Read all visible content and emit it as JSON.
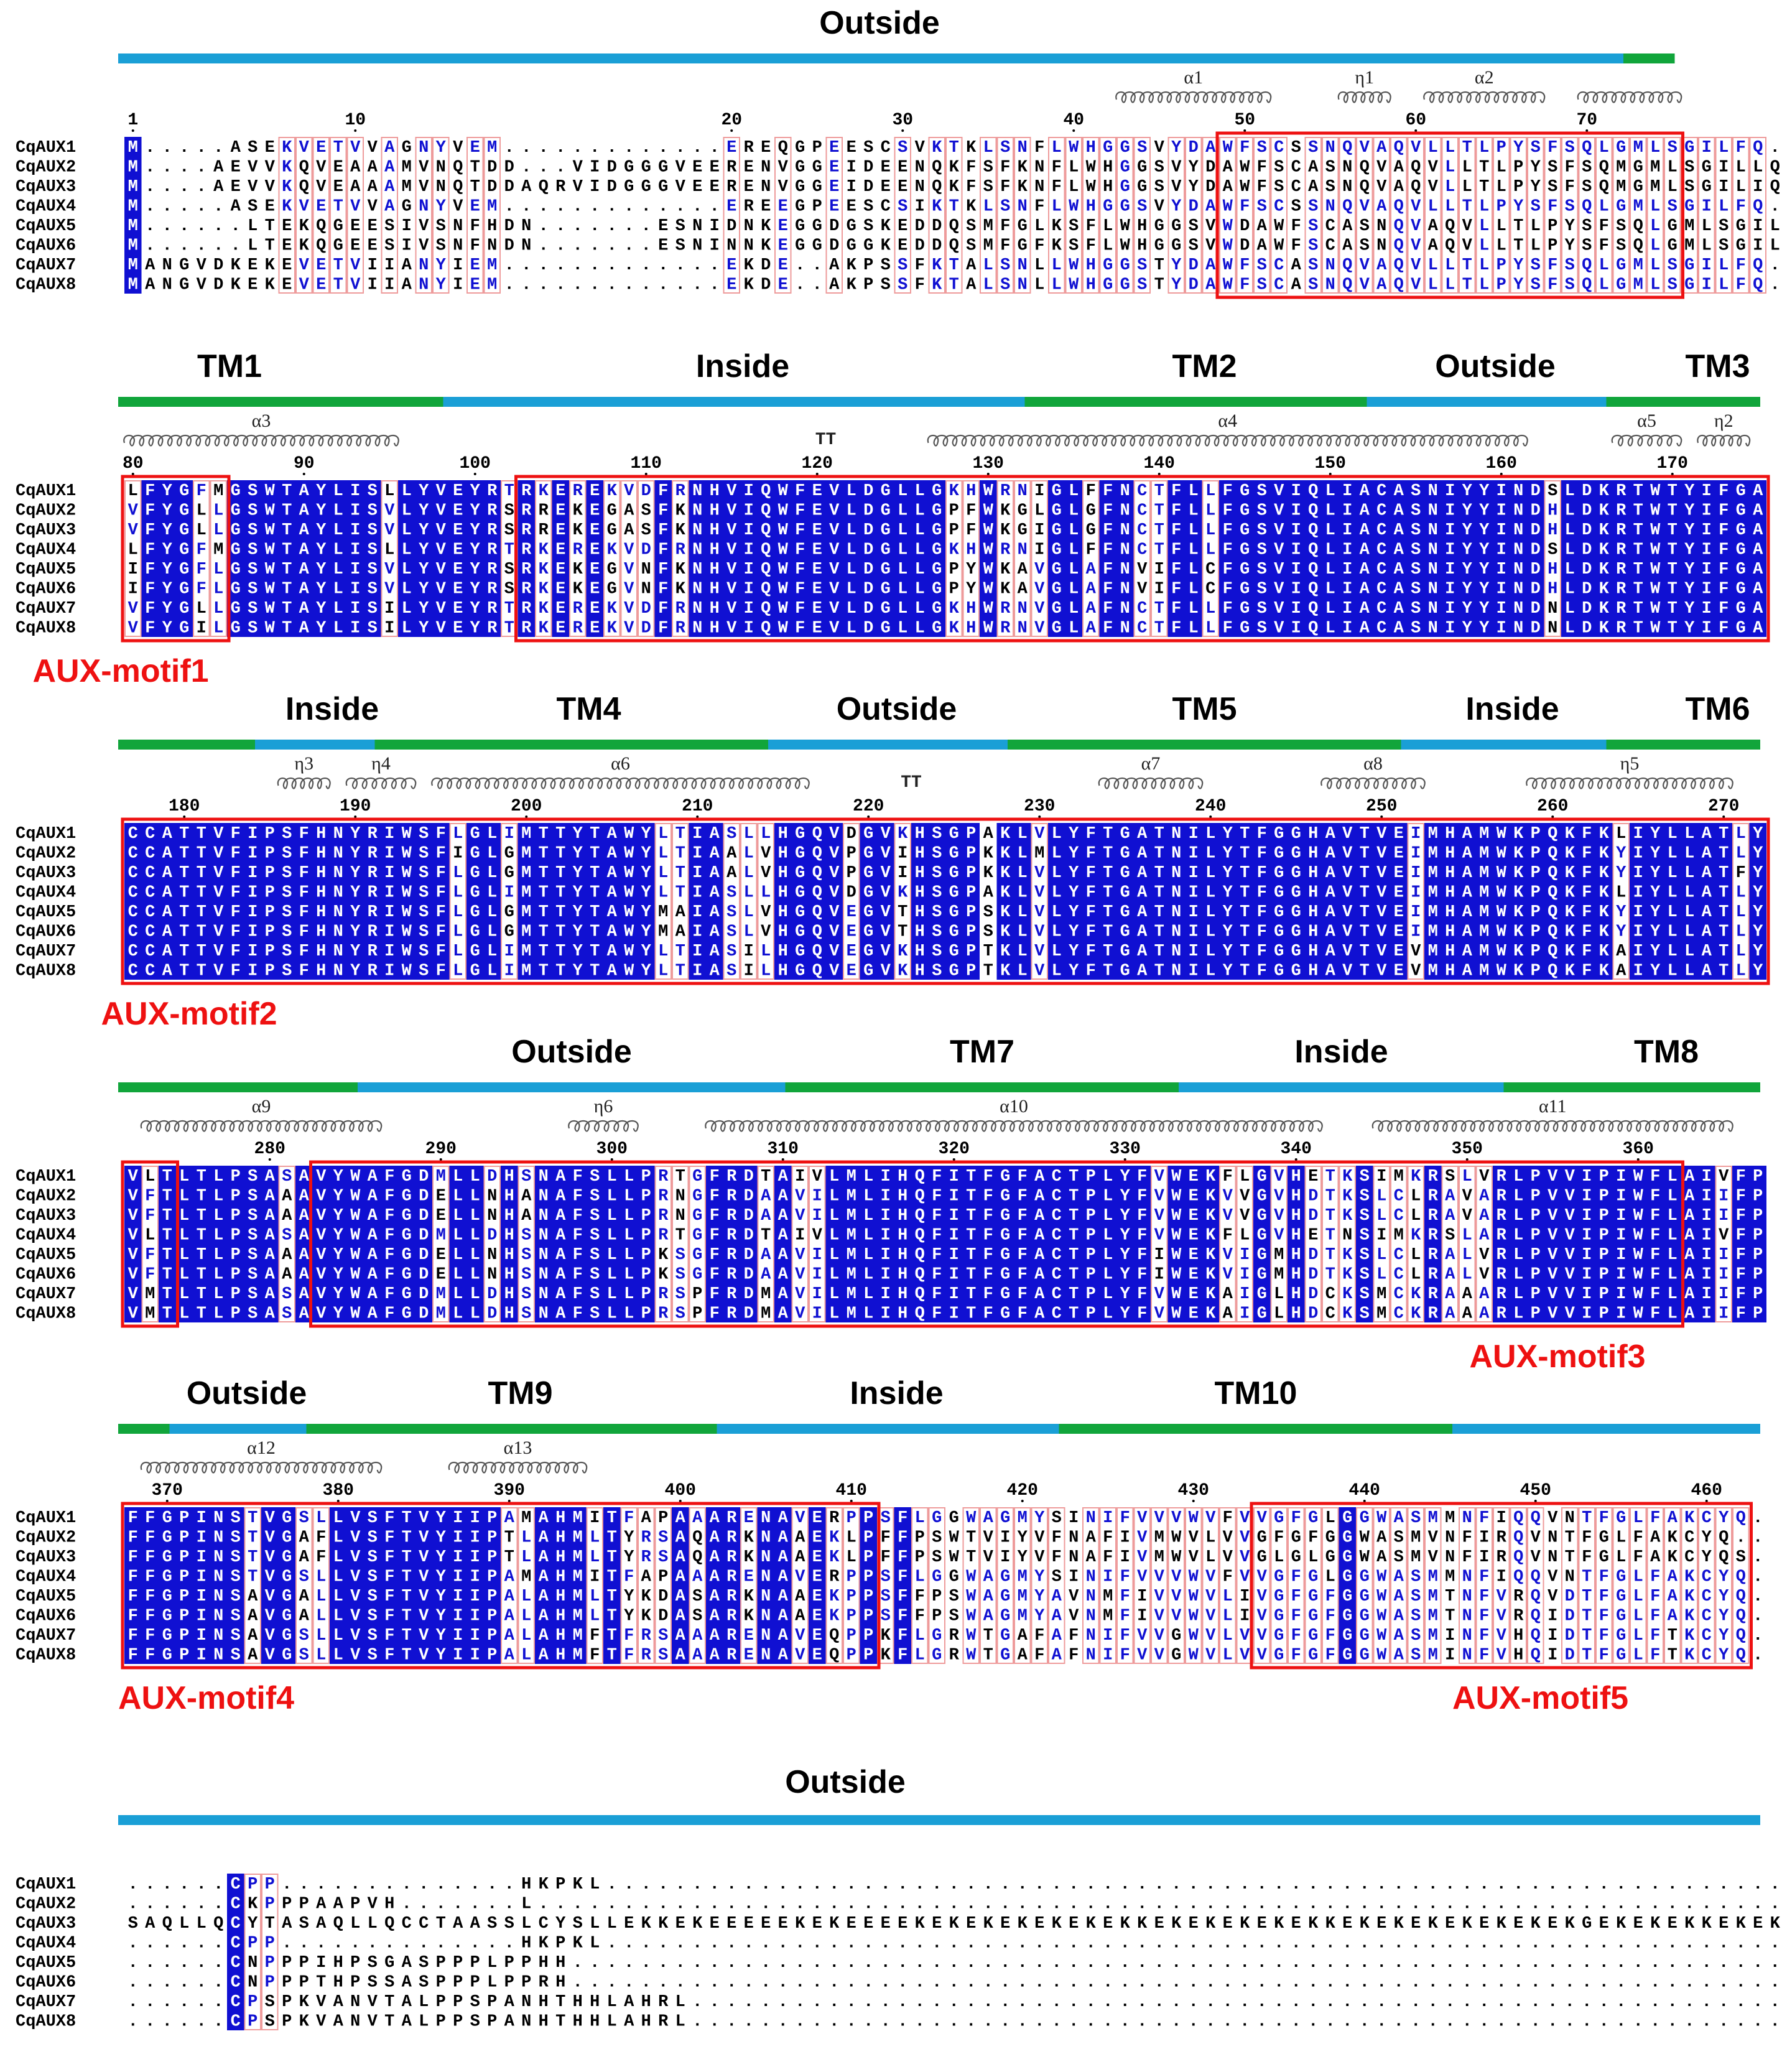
{
  "colors": {
    "conserved_bg": "#1010d2",
    "conserved_fg": "#ffffff",
    "similar_fg": "#1010d2",
    "default_fg": "#000000",
    "box_red": "#ee1111",
    "thin_red": "#ee9b9b",
    "outside_bar": "#1a9fd6",
    "tm_bar": "#11a53b",
    "motif_label": "#ee1111",
    "coil": "#777777"
  },
  "seq_names": [
    "CqAUX1",
    "CqAUX2",
    "CqAUX3",
    "CqAUX4",
    "CqAUX5",
    "CqAUX6",
    "CqAUX7",
    "CqAUX8"
  ],
  "blocks": [
    {
      "start_col": 0,
      "rows": [
        "M.....ASEKVETVVAGNYVEM.............EREQGPEESCSVKTKLSNFLWHGGSVYDAWFSCSSNQVAQVLLTLPYSFSQLGMLSGILFQ",
        "M....AEVVKQVEAAAMVNQTDD...VIDGGGVEERENVGGEIDEENQKFSFKNFLWHGGSVYDAWFSCASNQVAQVLLTLPYSFSQMGMLSGILLQ",
        "M....AEVVKQVEAAAMVNQTDDAQRVIDGGGVEERENVGGEIDEENQKFSFKNFLWHGGSVYDAWFSCASNQVAQVLLTLPYSFSQMGMLSGILIQ",
        "M.....ASEKVETVVAGNYVEM.............EREEGPEESCSIKTKLSNFLWHGGSVYDAWFSCSSNQVAQVLLTLPYSFSQLGMLSGILFQ",
        "M......LTEKQGEESIVSNFHDN.......ESNIDNKEGGDGSKEDDQSMFGLKSFLWHGGSVWDAWFSCASNQVAQVLLTLPYSFSQLGMLSGILLQ",
        "M......LTEKQGEESIVSNFNDN.......ESNINNKEGGDGGKEDDQSMFGFKSFLWHGGSVWDAWFSCASNQVAQVLLTLPYSFSQLGMLSGILLQ",
        "MANGVDKEKEVETVIIANYIEM.............EKDE..AKPSSFKTALSNLLWHGGSTYDAWFSCASNQVAQVLLTLPYSFSQLGMLSGILFQ",
        "MANGVDKEKEVETVIIANYIEM.............EKDE..AKPSSFKTALSNLLWHGGSTYDAWFSCASNQVAQVLLTLPYSFSQLGMLSGILFQ"
      ],
      "numbers": [
        {
          "col": 0,
          "label": "1"
        },
        {
          "col": 13,
          "label": "10"
        },
        {
          "col": 35,
          "label": "20"
        },
        {
          "col": 45,
          "label": "30"
        },
        {
          "col": 55,
          "label": "40"
        },
        {
          "col": 65,
          "label": "50"
        },
        {
          "col": 75,
          "label": "60"
        },
        {
          "col": 85,
          "label": "70"
        }
      ],
      "segments": [
        {
          "text": "Outside",
          "start": 0,
          "end": 88,
          "kind": "outside",
          "label_col": 44
        },
        {
          "text": "",
          "start": 88,
          "end": 91,
          "kind": "tm",
          "label_col": -1
        }
      ],
      "sec": [
        {
          "kind": "helix",
          "start": 58,
          "end": 67,
          "label": "α1"
        },
        {
          "kind": "eta",
          "start": 71,
          "end": 74,
          "label": "η1"
        },
        {
          "kind": "helix",
          "start": 76,
          "end": 83,
          "label": "α2"
        },
        {
          "kind": "helix",
          "start": 85,
          "end": 91,
          "label": ""
        }
      ],
      "boxes": [
        {
          "start": 64,
          "end": 91
        }
      ],
      "motif_labels": []
    },
    {
      "start_col": 0,
      "rows": [
        "LFYGFMGSWTAYLISLLYVEYRTRKEREKVDFRNHVIQWFEVLDGLLGKHWRNIGLFFNCTFLLFGSVIQLIACASNIYYINDSLDKRTWTYIFGA",
        "VFYGLLGSWTAYLISVLYVEYRSRREKEGASFKNHVIQWFEVLDGLLGPFWKGLGLGFNCTFLLFGSVIQLIACASNIYYINDHLDKRTWTYIFGA",
        "VFYGLLGSWTAYLISVLYVEYRSRREKEGASFKNHVIQWFEVLDGLLGPFWKGIGLGFNCTFLLFGSVIQLIACASNIYYINDHLDKRTWTYIFGA",
        "LFYGFMGSWTAYLISLLYVEYRTRKEREKVDFRNHVIQWFEVLDGLLGKHWRNIGLFFNCTFLLFGSVIQLIACASNIYYINDSLDKRTWTYIFGA",
        "IFYGFLGSWTAYLISVLYVEYRSRKEKEGVNFKNHVIQWFEVLDGLLGPYWKAVGLAFNVIFLCFGSVIQLIACASNIYYINDHLDKRTWTYIFGA",
        "IFYGFLGSWTAYLISVLYVEYRSRKEKEGVNFKNHVIQWFEVLDGLLGPYWKAVGLAFNVIFLCFGSVIQLIACASNIYYINDHLDKRTWTYIFGA",
        "VFYGLLGSWTAYLISILYVEYRTRKEREKVDFRNHVIQWFEVLDGLLGKHWRNVGLAFNCTFLLFGSVIQLIACASNIYYINDNLDKRTWTYIFGA",
        "VFYGILGSWTAYLISILYVEYRTRKEREKVDFRNHVIQWFEVLDGLLGKHWRNVGLAFNCTFLLFGSVIQLIACASNIYYINDNLDKRTWTYIFGA"
      ],
      "numbers": [
        {
          "col": 0,
          "label": "80"
        },
        {
          "col": 10,
          "label": "90"
        },
        {
          "col": 20,
          "label": "100"
        },
        {
          "col": 30,
          "label": "110"
        },
        {
          "col": 40,
          "label": "120"
        },
        {
          "col": 50,
          "label": "130"
        },
        {
          "col": 60,
          "label": "140"
        },
        {
          "col": 70,
          "label": "150"
        },
        {
          "col": 80,
          "label": "160"
        },
        {
          "col": 90,
          "label": "170"
        }
      ],
      "segments": [
        {
          "text": "TM1",
          "start": 0,
          "end": 19,
          "kind": "tm",
          "label_col": 6
        },
        {
          "text": "Inside",
          "start": 19,
          "end": 53,
          "kind": "outside",
          "label_col": 36
        },
        {
          "text": "TM2",
          "start": 53,
          "end": 73,
          "kind": "tm",
          "label_col": 63
        },
        {
          "text": "Outside",
          "start": 73,
          "end": 87,
          "kind": "outside",
          "label_col": 80
        },
        {
          "text": "TM3",
          "start": 87,
          "end": 96,
          "kind": "tm",
          "label_col": 93
        }
      ],
      "sec": [
        {
          "kind": "helix",
          "start": 0,
          "end": 16,
          "label": "α3"
        },
        {
          "kind": "tt",
          "start": 40,
          "end": 42,
          "label": "TT"
        },
        {
          "kind": "helix",
          "start": 47,
          "end": 82,
          "label": "α4"
        },
        {
          "kind": "helix",
          "start": 87,
          "end": 91,
          "label": "α5"
        },
        {
          "kind": "eta",
          "start": 92,
          "end": 95,
          "label": "η2"
        }
      ],
      "boxes": [
        {
          "start": 0,
          "end": 6
        },
        {
          "start": 23,
          "end": 96
        }
      ],
      "motif_labels": [
        {
          "text": "AUX-motif1",
          "col": -5
        }
      ]
    },
    {
      "start_col": 0,
      "rows": [
        "CCATTVFIPSFHNYRIWSFLGLIMTTYTAWYLTIASLLHGQVDGVKHSGPAKLVLYFTGATNILYTFGGHAVTVEIMHAMWKPQKFKLIYLLATLY",
        "CCATTVFIPSFHNYRIWSFIGLGMTTYTAWYLTIAALVHGQVPGVIHSGPKKLMLYFTGATNILYTFGGHAVTVEIMHAMWKPQKFKYIYLLATLY",
        "CCATTVFIPSFHNYRIWSFLGLGMTTYTAWYLTIAALVHGQVPGVIHSGPKKLVLYFTGATNILYTFGGHAVTVEIMHAMWKPQKFKYIYLLATFY",
        "CCATTVFIPSFHNYRIWSFLGLIMTTYTAWYLTIASLLHGQVDGVKHSGPAKLVLYFTGATNILYTFGGHAVTVEIMHAMWKPQKFKLIYLLATLY",
        "CCATTVFIPSFHNYRIWSFLGLGMTTYTAWYMAIASLVHGQVEGVTHSGPSKLVLYFTGATNILYTFGGHAVTVEIMHAMWKPQKFKYIYLLATLY",
        "CCATTVFIPSFHNYRIWSFLGLGMTTYTAWYMAIASLVHGQVEGVTHSGPSKLVLYFTGATNILYTFGGHAVTVEIMHAMWKPQKFKYIYLLATLY",
        "CCATTVFIPSFHNYRIWSFLGLIMTTYTAWYLTIASILHGQVEGVKHSGPTKLVLYFTGATNILYTFGGHAVTVEVMHAMWKPQKFKAIYLLATLY",
        "CCATTVFIPSFHNYRIWSFLGLIMTTYTAWYLTIASILHGQVEGVKHSGPTKLVLYFTGATNILYTFGGHAVTVEVMHAMWKPQKFKAIYLLATLY"
      ],
      "numbers": [
        {
          "col": 3,
          "label": "180"
        },
        {
          "col": 13,
          "label": "190"
        },
        {
          "col": 23,
          "label": "200"
        },
        {
          "col": 33,
          "label": "210"
        },
        {
          "col": 43,
          "label": "220"
        },
        {
          "col": 53,
          "label": "230"
        },
        {
          "col": 63,
          "label": "240"
        },
        {
          "col": 73,
          "label": "250"
        },
        {
          "col": 83,
          "label": "260"
        },
        {
          "col": 93,
          "label": "270"
        }
      ],
      "segments": [
        {
          "text": "",
          "start": 0,
          "end": 8,
          "kind": "tm",
          "label_col": -1
        },
        {
          "text": "Inside",
          "start": 8,
          "end": 15,
          "kind": "outside",
          "label_col": 12
        },
        {
          "text": "TM4",
          "start": 15,
          "end": 38,
          "kind": "tm",
          "label_col": 27
        },
        {
          "text": "Outside",
          "start": 38,
          "end": 52,
          "kind": "outside",
          "label_col": 45
        },
        {
          "text": "TM5",
          "start": 52,
          "end": 75,
          "kind": "tm",
          "label_col": 63
        },
        {
          "text": "Inside",
          "start": 75,
          "end": 87,
          "kind": "outside",
          "label_col": 81
        },
        {
          "text": "TM6",
          "start": 87,
          "end": 96,
          "kind": "tm",
          "label_col": 93
        }
      ],
      "sec": [
        {
          "kind": "eta",
          "start": 9,
          "end": 12,
          "label": "η3"
        },
        {
          "kind": "eta",
          "start": 13,
          "end": 17,
          "label": "η4"
        },
        {
          "kind": "helix",
          "start": 18,
          "end": 40,
          "label": "α6"
        },
        {
          "kind": "tt",
          "start": 45,
          "end": 47,
          "label": "TT"
        },
        {
          "kind": "helix",
          "start": 57,
          "end": 63,
          "label": "α7"
        },
        {
          "kind": "helix",
          "start": 70,
          "end": 76,
          "label": "α8"
        },
        {
          "kind": "helix",
          "start": 82,
          "end": 94,
          "label": "η5"
        }
      ],
      "boxes": [
        {
          "start": 0,
          "end": 96
        }
      ],
      "motif_labels": [
        {
          "text": "AUX-motif2",
          "col": -1
        }
      ]
    },
    {
      "start_col": 0,
      "rows": [
        "VLTLTLPSASAVYWAFGDMLLDHSNAFSLLPRTGFRDTAIVLMLIHQFITFGFACTPLYFVWEKFLGVHETKSIMKRSLVRLPVVIPIWFLAIVFP",
        "VFTLTLPSAAAVYWAFGDELLNHANAFSLLPRNGFRDAAVILMLIHQFITFGFACTPLYFVWEKVVGVHDTKSLCLRAVARLPVVIPIWFLAIIFP",
        "VFTLTLPSAAAVYWAFGDELLNHANAFSLLPRNGFRDAAVILMLIHQFITFGFACTPLYFVWEKVVGVHDTKSLCLRAVARLPVVIPIWFLAIIFP",
        "VLTLTLPSASAVYWAFGDMLLDHSNAFSLLPRTGFRDTAIVLMLIHQFITFGFACTPLYFVWEKFLGVHETNSIMKRSLARLPVVIPIWFLAIVFP",
        "VFTLTLPSAAAVYWAFGDELLNHSNAFSLLPKSGFRDAAVILMLIHQFITFGFACTPLYFIWEKVIGMHDTKSLCLRALVRLPVVIPIWFLAIIFP",
        "VFTLTLPSAAAVYWAFGDELLNHSNAFSLLPKSGFRDAAVILMLIHQFITFGFACTPLYFIWEKVIGMHDTKSLCLRALVRLPVVIPIWFLAIIFP",
        "VMTLTLPSASAVYWAFGDMLLDHSNAFSLLPRSPFRDMAVILMLIHQFITFGFACTPLYFVWEKAIGLHDCKSMCKRAAARLPVVIPIWFLAIIFP",
        "VMTLTLPSASAVYWAFGDMLLDHSNAFSLLPRSPFRDMAVILMLIHQFITFGFACTPLYFVWEKAIGLHDCKSMCKRAAARLPVVIPIWFLAIIFP"
      ],
      "numbers": [
        {
          "col": 8,
          "label": "280"
        },
        {
          "col": 18,
          "label": "290"
        },
        {
          "col": 28,
          "label": "300"
        },
        {
          "col": 38,
          "label": "310"
        },
        {
          "col": 48,
          "label": "320"
        },
        {
          "col": 58,
          "label": "330"
        },
        {
          "col": 68,
          "label": "340"
        },
        {
          "col": 78,
          "label": "350"
        },
        {
          "col": 88,
          "label": "360"
        }
      ],
      "segments": [
        {
          "text": "",
          "start": 0,
          "end": 14,
          "kind": "tm",
          "label_col": -1
        },
        {
          "text": "Outside",
          "start": 14,
          "end": 39,
          "kind": "outside",
          "label_col": 26
        },
        {
          "text": "TM7",
          "start": 39,
          "end": 62,
          "kind": "tm",
          "label_col": 50
        },
        {
          "text": "Inside",
          "start": 62,
          "end": 81,
          "kind": "outside",
          "label_col": 71
        },
        {
          "text": "TM8",
          "start": 81,
          "end": 96,
          "kind": "tm",
          "label_col": 90
        }
      ],
      "sec": [
        {
          "kind": "helix",
          "start": 1,
          "end": 15,
          "label": "α9"
        },
        {
          "kind": "eta",
          "start": 26,
          "end": 30,
          "label": "η6"
        },
        {
          "kind": "helix",
          "start": 34,
          "end": 70,
          "label": "α10"
        },
        {
          "kind": "helix",
          "start": 73,
          "end": 94,
          "label": "α11"
        }
      ],
      "boxes": [
        {
          "start": 0,
          "end": 3
        },
        {
          "start": 11,
          "end": 91
        }
      ],
      "motif_labels": [
        {
          "text": "AUX-motif3",
          "col": 79
        }
      ]
    },
    {
      "start_col": 0,
      "rows": [
        "FFGPINSTVGSLLVSFTVYIIPAMAHMITFAPAAARENAVERPPSFLGGWAGMYSINIFVVVWVFVVGFGLGGWASMMNFIQQVNTFGLFAKCYQ.",
        "FFGPINSTVGAFLVSFTVYIIPTLAHMLTYRSAQARKNAAEKLPFFPSWTVIYVFNAFIVMWVLVVGFGFGGWASMVNFIRQVNTFGLFAKCYQ.",
        "FFGPINSTVGAFLVSFTVYIIPTLAHMLTYRSAQARKNAAEKLPFFPSWTVIYVFNAFIVMWVLVVGLGLGGWASMVNFIRQVNTFGLFAKCYQS",
        "FFGPINSTVGSLLVSFTVYIIPAMAHMITFAPAAARENAVERPPSFLGGWAGMYSINIFVVVWVFVVGFGLGGWASMMNFIQQVNTFGLFAKCYQ.",
        "FFGPINSAVGALLVSFTVYIIPALAHMLTYKDASARKNAAEKPPSFFPSWAGMYAVNMFIVVWVLIVGFGFGGWASMTNFVRQVDTFGLFAKCYQ.",
        "FFGPINSAVGALLVSFTVYIIPALAHMLTYKDASARKNAAEKPPSFFPSWAGMYAVNMFIVVWVLIVGFGFGGWASMTNFVRQIDTFGLFAKCYQ.",
        "FFGPINSAVGSLLVSFTVYIIPALAHMFTFRSAAARENAVEQPPKFLGRWTGAFAFNIFVVGWVLVVGFGFGGWASMINFVHQIDTFGLFTKCYQ.",
        "FFGPINSAVGSLLVSFTVYIIPALAHMFTFRSAAARENAVEQPPKFLGRWTGAFAFNIFVVGWVLVVGFGFGGWASMINFVHQIDTFGLFTKCYQ."
      ],
      "numbers": [
        {
          "col": 2,
          "label": "370"
        },
        {
          "col": 12,
          "label": "380"
        },
        {
          "col": 22,
          "label": "390"
        },
        {
          "col": 32,
          "label": "400"
        },
        {
          "col": 42,
          "label": "410"
        },
        {
          "col": 52,
          "label": "420"
        },
        {
          "col": 62,
          "label": "430"
        },
        {
          "col": 72,
          "label": "440"
        },
        {
          "col": 82,
          "label": "450"
        },
        {
          "col": 92,
          "label": "460"
        }
      ],
      "segments": [
        {
          "text": "",
          "start": 0,
          "end": 3,
          "kind": "tm",
          "label_col": -1
        },
        {
          "text": "Outside",
          "start": 3,
          "end": 11,
          "kind": "outside",
          "label_col": 7
        },
        {
          "text": "TM9",
          "start": 11,
          "end": 35,
          "kind": "tm",
          "label_col": 23
        },
        {
          "text": "Inside",
          "start": 35,
          "end": 55,
          "kind": "outside",
          "label_col": 45
        },
        {
          "text": "TM10",
          "start": 55,
          "end": 78,
          "kind": "tm",
          "label_col": 66
        },
        {
          "text": "",
          "start": 78,
          "end": 96,
          "kind": "outside",
          "label_col": -1
        }
      ],
      "sec": [
        {
          "kind": "helix",
          "start": 1,
          "end": 15,
          "label": "α12"
        },
        {
          "kind": "helix",
          "start": 19,
          "end": 27,
          "label": "α13"
        }
      ],
      "boxes": [
        {
          "start": 0,
          "end": 44
        },
        {
          "start": 66,
          "end": 95
        }
      ],
      "motif_labels": [
        {
          "text": "AUX-motif4",
          "col": 0
        },
        {
          "text": "AUX-motif5",
          "col": 78
        }
      ]
    },
    {
      "start_col": 0,
      "rows": [
        "......CPP..............HKPKL.....................................................................",
        "......CKPPPAAPVH.......L.........................................................................",
        "SAQLLQCYTASAQLLQCCTAASSLCYSLLEKKEKEEEEEKEKEEEEKEKEKEKEKEKEKKEKEKEKEKEKKEKEKEKEKEKEKEKGEKEKEKKEKEKEK",
        "......CPP..............HKPKL.....................................................................",
        "......CNPPPIHPSGASPPPLPPHH.......................................................................",
        "......CNPPPTHPSSASPPPLPPRH.......................................................................",
        "......CPSPKVANVTALPPSPANHTHHLAHRL................................................................",
        "......CPSPKVANVTALPPSPANHTHHLAHRL................................................................"
      ],
      "numbers": [],
      "segments": [
        {
          "text": "Outside",
          "start": 0,
          "end": 96,
          "kind": "outside",
          "label_col": 42
        }
      ],
      "sec": [],
      "boxes": [],
      "motif_labels": []
    }
  ]
}
